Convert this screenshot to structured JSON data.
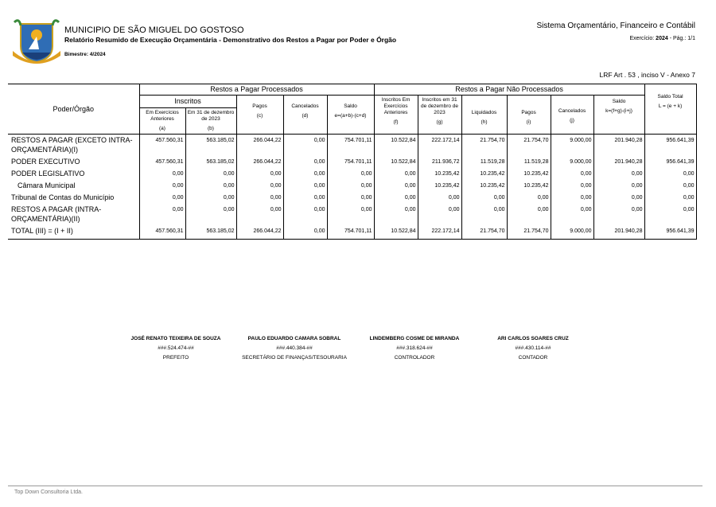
{
  "header": {
    "municipality": "MUNICIPIO DE SÃO MIGUEL DO GOSTOSO",
    "report": "Relatório Resumido de Execução Orçamentária - Demonstrativo dos Restos a Pagar por Poder e Órgão",
    "period": "Bimestre: 4/2024",
    "system": "Sistema Orçamentário, Financeiro e Contábil",
    "exercise_label": "Exercício:",
    "exercise": "2024",
    "page": "- Pág.: 1/1",
    "legal": "LRF Art . 53 , inciso V - Anexo 7"
  },
  "table": {
    "first_header": "Poder/Órgão",
    "processed": "Restos a Pagar Processados",
    "unprocessed": "Restos a Pagar Não Processados",
    "inscritos": "Inscritos",
    "columns": [
      {
        "label": "Em Exercícios Anteriores",
        "code": "(a)"
      },
      {
        "label": "Em 31 de dezembro de 2023",
        "code": "(b)"
      },
      {
        "label": "Pagos",
        "code": "(c)"
      },
      {
        "label": "Cancelados",
        "code": "(d)"
      },
      {
        "label": "Saldo",
        "code": "e=(a+b)-(c+d)"
      },
      {
        "label": "Inscritos Em Exercícios Anteriores",
        "code": "(f)"
      },
      {
        "label": "Inscritos em 31 de dezembro de 2023",
        "code": "(g)"
      },
      {
        "label": "Liquidados",
        "code": "(h)"
      },
      {
        "label": "Pagos",
        "code": "(i)"
      },
      {
        "label": "Cancelados",
        "code": "(j)"
      },
      {
        "label": "Saldo",
        "code": "k=(f+g)-(i+j)"
      },
      {
        "label": "Saldo Total",
        "code": "L = (e + k)"
      }
    ],
    "rows": [
      {
        "label": "RESTOS A PAGAR (EXCETO INTRA-ORÇAMENTÁRIA)(I)",
        "indent": false,
        "values": [
          "457.560,31",
          "563.185,02",
          "266.044,22",
          "0,00",
          "754.701,11",
          "10.522,84",
          "222.172,14",
          "21.754,70",
          "21.754,70",
          "9.000,00",
          "201.940,28",
          "956.641,39"
        ]
      },
      {
        "label": "PODER EXECUTIVO",
        "indent": false,
        "values": [
          "457.560,31",
          "563.185,02",
          "266.044,22",
          "0,00",
          "754.701,11",
          "10.522,84",
          "211.936,72",
          "11.519,28",
          "11.519,28",
          "9.000,00",
          "201.940,28",
          "956.641,39"
        ]
      },
      {
        "label": "PODER LEGISLATIVO",
        "indent": false,
        "values": [
          "0,00",
          "0,00",
          "0,00",
          "0,00",
          "0,00",
          "0,00",
          "10.235,42",
          "10.235,42",
          "10.235,42",
          "0,00",
          "0,00",
          "0,00"
        ]
      },
      {
        "label": "Câmara Municipal",
        "indent": true,
        "values": [
          "0,00",
          "0,00",
          "0,00",
          "0,00",
          "0,00",
          "0,00",
          "10.235,42",
          "10.235,42",
          "10.235,42",
          "0,00",
          "0,00",
          "0,00"
        ]
      },
      {
        "label": "Tribunal de Contas do Município",
        "indent": false,
        "values": [
          "0,00",
          "0,00",
          "0,00",
          "0,00",
          "0,00",
          "0,00",
          "0,00",
          "0,00",
          "0,00",
          "0,00",
          "0,00",
          "0,00"
        ]
      },
      {
        "label": "RESTOS A PAGAR (INTRA-ORÇAMENTÁRIA)(II)",
        "indent": false,
        "values": [
          "0,00",
          "0,00",
          "0,00",
          "0,00",
          "0,00",
          "0,00",
          "0,00",
          "0,00",
          "0,00",
          "0,00",
          "0,00",
          "0,00"
        ]
      },
      {
        "label": "TOTAL (III) = (I + II)",
        "indent": false,
        "values": [
          "457.560,31",
          "563.185,02",
          "266.044,22",
          "0,00",
          "754.701,11",
          "10.522,84",
          "222.172,14",
          "21.754,70",
          "21.754,70",
          "9.000,00",
          "201.940,28",
          "956.641,39"
        ]
      }
    ]
  },
  "signatures": [
    {
      "name": "JOSÉ RENATO TEIXEIRA DE SOUZA",
      "id": "###.524.474-##",
      "role": "PREFEITO"
    },
    {
      "name": "PAULO EDUARDO CAMARA SOBRAL",
      "id": "###.440.384-##",
      "role": "SECRETÁRIO DE FINANÇAS/TESOURARIA"
    },
    {
      "name": "LINDEMBERG COSME DE MIRANDA",
      "id": "###.318.624-##",
      "role": "CONTROLADOR"
    },
    {
      "name": "ARI CARLOS SOARES CRUZ",
      "id": "###.430.114-##",
      "role": "CONTADOR"
    }
  ],
  "footer": "Top Down Consultoria Ltda."
}
